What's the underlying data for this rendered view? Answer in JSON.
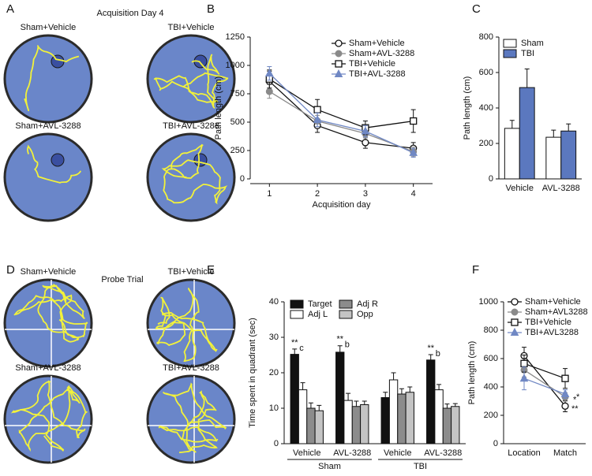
{
  "swim_paths": [
    {
      "panel": "A",
      "title": "Acquisition Day 4",
      "labels": [
        "Sham+Vehicle",
        "TBI+Vehicle",
        "Sham+AVL-3288",
        "TBI+AVL-3288"
      ],
      "platform": true
    },
    {
      "panel": "D",
      "title": "Probe Trial",
      "labels": [
        "Sham+Vehicle",
        "TBI+Vehicle",
        "Sham+AVL-3288",
        "TBI+AVL-3288"
      ],
      "quadrants": true
    }
  ],
  "chart_data": [
    {
      "panel": "B",
      "type": "line",
      "x": [
        1,
        2,
        3,
        4
      ],
      "xlim": [
        0.6,
        4.4
      ],
      "xticks": [
        1,
        2,
        3,
        4
      ],
      "xlabel": "Acquisition day",
      "ylabel": "Path length (cm)",
      "ylim": [
        0,
        1250
      ],
      "yticks": [
        0,
        250,
        500,
        750,
        1000,
        1250
      ],
      "series": [
        {
          "name": "Sham+Vehicle",
          "color": "#111111",
          "marker": "circle-open",
          "values": [
            860,
            470,
            320,
            270
          ],
          "errors": [
            90,
            60,
            50,
            50
          ]
        },
        {
          "name": "Sham+AVL-3288",
          "color": "#8a8a8a",
          "marker": "circle-filled",
          "values": [
            770,
            510,
            400,
            240
          ],
          "errors": [
            60,
            50,
            40,
            40
          ]
        },
        {
          "name": "TBI+Vehicle",
          "color": "#111111",
          "marker": "square-open",
          "values": [
            880,
            610,
            450,
            510
          ],
          "errors": [
            80,
            90,
            60,
            100
          ]
        },
        {
          "name": "TBI+AVL-3288",
          "color": "#7088c4",
          "marker": "triangle",
          "values": [
            930,
            520,
            420,
            230
          ],
          "errors": [
            60,
            60,
            50,
            40
          ]
        }
      ]
    },
    {
      "panel": "C",
      "type": "bar",
      "categories": [
        "Vehicle",
        "AVL-3288"
      ],
      "ylabel": "Path length (cm)",
      "ylim": [
        0,
        800
      ],
      "yticks": [
        0,
        200,
        400,
        600,
        800
      ],
      "series": [
        {
          "name": "Sham",
          "color": "#ffffff",
          "values": [
            285,
            235
          ],
          "errors": [
            45,
            40
          ]
        },
        {
          "name": "TBI",
          "color": "#5b78bf",
          "values": [
            515,
            270
          ],
          "errors": [
            105,
            40
          ]
        }
      ]
    },
    {
      "panel": "E",
      "type": "bar",
      "categories": [
        "Vehicle",
        "AVL-3288",
        "Vehicle",
        "AVL-3288"
      ],
      "groups": [
        "Sham",
        "TBI"
      ],
      "ylabel": "Time spent in quadrant (sec)",
      "ylim": [
        0,
        40
      ],
      "yticks": [
        0,
        10,
        20,
        30,
        40
      ],
      "legend_columns": 2,
      "series": [
        {
          "name": "Target",
          "color": "#111111",
          "values": [
            25.2,
            25.8,
            13,
            23.6
          ],
          "errors": [
            1.5,
            1.8,
            1.5,
            1.5
          ],
          "significance": [
            "**",
            "**",
            null,
            "**"
          ],
          "letters": [
            "c",
            "b",
            null,
            "b"
          ]
        },
        {
          "name": "Adj L",
          "color": "#ffffff",
          "values": [
            15.2,
            12.2,
            18,
            15.2
          ],
          "errors": [
            2,
            2,
            2,
            1.5
          ]
        },
        {
          "name": "Adj R",
          "color": "#8c8c8c",
          "values": [
            10,
            10.5,
            14,
            10
          ],
          "errors": [
            1.5,
            1.5,
            1.5,
            1.2
          ]
        },
        {
          "name": "Opp",
          "color": "#c4c4c4",
          "values": [
            9.3,
            11,
            14.5,
            10.5
          ],
          "errors": [
            1.5,
            1,
            1.5,
            0.8
          ]
        }
      ]
    },
    {
      "panel": "F",
      "type": "line",
      "categories": [
        "Location",
        "Match"
      ],
      "ylabel": "Path length (cm)",
      "ylim": [
        0,
        1000
      ],
      "yticks": [
        0,
        200,
        400,
        600,
        800,
        1000
      ],
      "series": [
        {
          "name": "Sham+Vehicle",
          "color": "#111111",
          "marker": "circle-open",
          "values": [
            620,
            265
          ],
          "errors": [
            60,
            40
          ],
          "significance": [
            null,
            "**"
          ]
        },
        {
          "name": "Sham+AVL3288",
          "color": "#8a8a8a",
          "marker": "circle-filled",
          "values": [
            520,
            330
          ],
          "errors": [
            50,
            30
          ],
          "significance": [
            null,
            "*"
          ]
        },
        {
          "name": "TBI+Vehicle",
          "color": "#111111",
          "marker": "square-open",
          "values": [
            565,
            460
          ],
          "errors": [
            60,
            70
          ]
        },
        {
          "name": "TBI+AVL3288",
          "color": "#7088c4",
          "marker": "triangle",
          "values": [
            460,
            350
          ],
          "errors": [
            80,
            30
          ],
          "significance": [
            null,
            "*"
          ]
        }
      ]
    }
  ]
}
